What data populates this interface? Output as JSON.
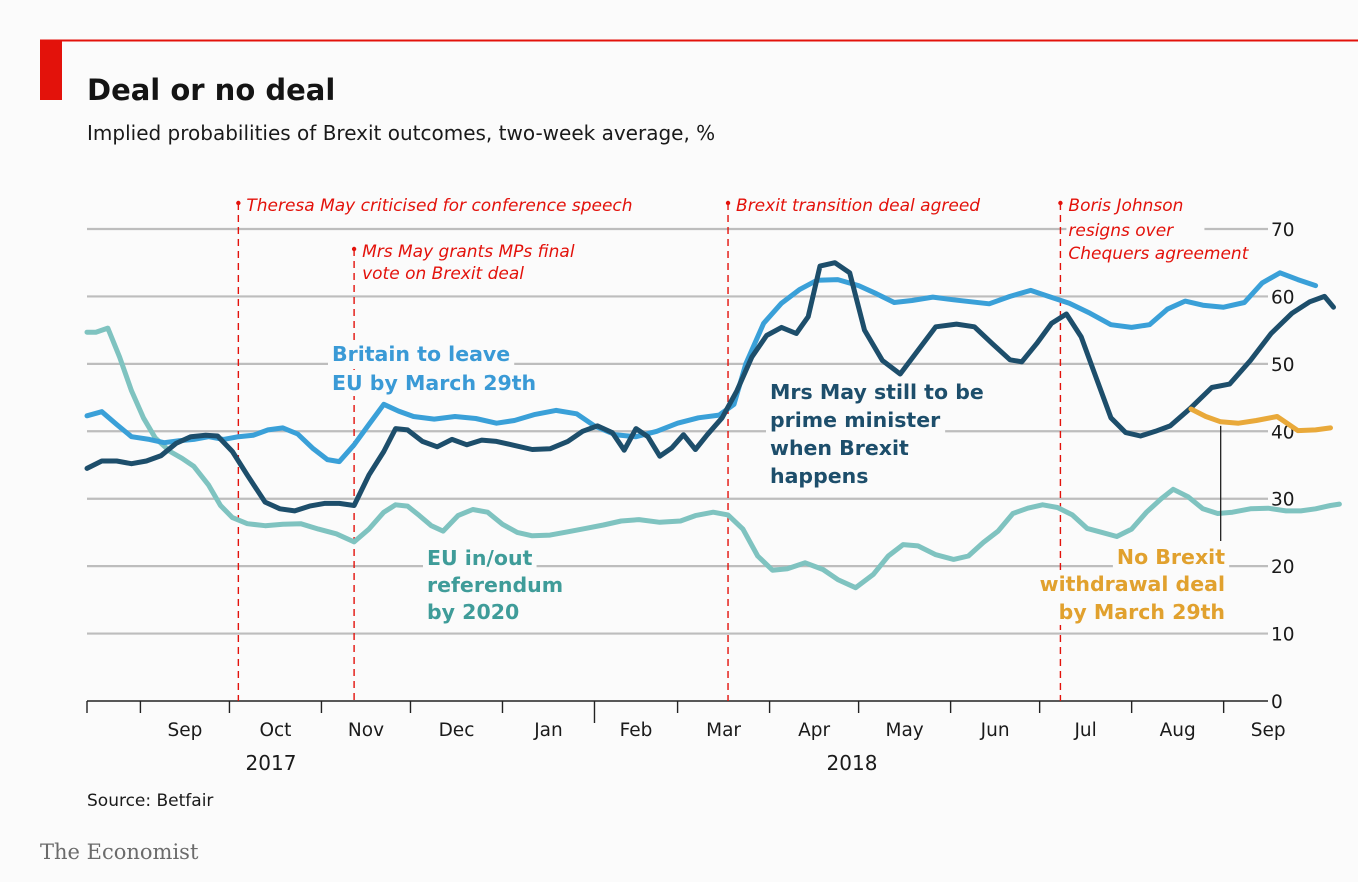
{
  "brand": "The Economist",
  "chart_data": {
    "type": "line",
    "title": "Deal or no deal",
    "subtitle": "Implied probabilities of Brexit outcomes, two-week average, %",
    "source": "Source: Betfair",
    "ylim": [
      0,
      70
    ],
    "yticks": [
      0,
      10,
      20,
      30,
      40,
      50,
      60,
      70
    ],
    "grid": true,
    "y_axis_side": "right",
    "x_range": [
      "2017-08-15",
      "2018-09-30"
    ],
    "month_ticks": [
      "Sep",
      "Oct",
      "Nov",
      "Dec",
      "Jan",
      "Feb",
      "Mar",
      "Apr",
      "May",
      "Jun",
      "Jul",
      "Aug",
      "Sep"
    ],
    "years": [
      "2017",
      "2018"
    ],
    "events": [
      {
        "date": "2017-10-05",
        "label": [
          "Theresa May criticised for conference speech"
        ]
      },
      {
        "date": "2017-11-13",
        "label": [
          "Mrs May grants MPs final",
          "vote on Brexit deal"
        ]
      },
      {
        "date": "2018-03-19",
        "label": [
          "Brexit transition deal agreed"
        ]
      },
      {
        "date": "2018-07-09",
        "label": [
          "Boris Johnson",
          "resigns over",
          "Chequers agreement"
        ]
      }
    ],
    "series": [
      {
        "name": "EU in/out referendum by 2020",
        "label_lines": [
          "EU in/out",
          "referendum",
          "by 2020"
        ],
        "color": "#7fc3c0",
        "label_color": "#3f9c99",
        "points": [
          [
            "2017-08-15",
            54.7
          ],
          [
            "2017-08-18",
            54.7
          ],
          [
            "2017-08-22",
            55.3
          ],
          [
            "2017-08-26",
            51
          ],
          [
            "2017-08-30",
            46
          ],
          [
            "2017-09-03",
            42
          ],
          [
            "2017-09-07",
            39
          ],
          [
            "2017-09-12",
            37
          ],
          [
            "2017-09-16",
            36
          ],
          [
            "2017-09-20",
            34.8
          ],
          [
            "2017-09-25",
            32
          ],
          [
            "2017-09-29",
            29
          ],
          [
            "2017-10-03",
            27.2
          ],
          [
            "2017-10-08",
            26.3
          ],
          [
            "2017-10-14",
            26
          ],
          [
            "2017-10-20",
            26.2
          ],
          [
            "2017-10-26",
            26.3
          ],
          [
            "2017-11-01",
            25.5
          ],
          [
            "2017-11-07",
            24.8
          ],
          [
            "2017-11-13",
            23.6
          ],
          [
            "2017-11-18",
            25.5
          ],
          [
            "2017-11-23",
            28
          ],
          [
            "2017-11-27",
            29.1
          ],
          [
            "2017-12-01",
            28.9
          ],
          [
            "2017-12-05",
            27.5
          ],
          [
            "2017-12-09",
            26
          ],
          [
            "2017-12-13",
            25.2
          ],
          [
            "2017-12-18",
            27.5
          ],
          [
            "2017-12-23",
            28.4
          ],
          [
            "2017-12-28",
            28
          ],
          [
            "2018-01-02",
            26.2
          ],
          [
            "2018-01-07",
            25
          ],
          [
            "2018-01-12",
            24.5
          ],
          [
            "2018-01-18",
            24.6
          ],
          [
            "2018-01-24",
            25.1
          ],
          [
            "2018-01-30",
            25.6
          ],
          [
            "2018-02-05",
            26.1
          ],
          [
            "2018-02-11",
            26.7
          ],
          [
            "2018-02-17",
            26.9
          ],
          [
            "2018-02-24",
            26.5
          ],
          [
            "2018-03-03",
            26.7
          ],
          [
            "2018-03-08",
            27.5
          ],
          [
            "2018-03-14",
            28
          ],
          [
            "2018-03-19",
            27.6
          ],
          [
            "2018-03-24",
            25.5
          ],
          [
            "2018-03-29",
            21.5
          ],
          [
            "2018-04-03",
            19.4
          ],
          [
            "2018-04-08",
            19.6
          ],
          [
            "2018-04-14",
            20.5
          ],
          [
            "2018-04-20",
            19.5
          ],
          [
            "2018-04-25",
            18
          ],
          [
            "2018-05-01",
            16.8
          ],
          [
            "2018-05-07",
            18.8
          ],
          [
            "2018-05-12",
            21.5
          ],
          [
            "2018-05-17",
            23.2
          ],
          [
            "2018-05-22",
            23
          ],
          [
            "2018-05-28",
            21.7
          ],
          [
            "2018-06-03",
            21
          ],
          [
            "2018-06-08",
            21.5
          ],
          [
            "2018-06-13",
            23.5
          ],
          [
            "2018-06-18",
            25.2
          ],
          [
            "2018-06-23",
            27.8
          ],
          [
            "2018-06-28",
            28.6
          ],
          [
            "2018-07-03",
            29.1
          ],
          [
            "2018-07-08",
            28.7
          ],
          [
            "2018-07-13",
            27.6
          ],
          [
            "2018-07-18",
            25.6
          ],
          [
            "2018-07-23",
            25
          ],
          [
            "2018-07-28",
            24.4
          ],
          [
            "2018-08-02",
            25.5
          ],
          [
            "2018-08-07",
            28
          ],
          [
            "2018-08-12",
            30
          ],
          [
            "2018-08-16",
            31.4
          ],
          [
            "2018-08-21",
            30.3
          ],
          [
            "2018-08-26",
            28.5
          ],
          [
            "2018-08-31",
            27.8
          ],
          [
            "2018-09-05",
            28
          ],
          [
            "2018-09-11",
            28.5
          ],
          [
            "2018-09-17",
            28.6
          ],
          [
            "2018-09-23",
            28.2
          ],
          [
            "2018-09-28",
            28.2
          ],
          [
            "2018-10-03",
            28.5
          ],
          [
            "2018-10-08",
            29
          ],
          [
            "2018-10-11",
            29.2
          ]
        ]
      },
      {
        "name": "Britain to leave EU by March 29th",
        "label_lines": [
          "Britain to leave",
          "EU by March 29th"
        ],
        "color": "#3aa0d8",
        "label_color": "#3a9ad6",
        "points": [
          [
            "2017-08-15",
            42.3
          ],
          [
            "2017-08-20",
            42.9
          ],
          [
            "2017-08-25",
            41
          ],
          [
            "2017-08-30",
            39.2
          ],
          [
            "2017-09-05",
            38.8
          ],
          [
            "2017-09-10",
            38.3
          ],
          [
            "2017-09-15",
            38.6
          ],
          [
            "2017-09-20",
            38.8
          ],
          [
            "2017-09-25",
            39.2
          ],
          [
            "2017-09-30",
            38.8
          ],
          [
            "2017-10-05",
            39.2
          ],
          [
            "2017-10-10",
            39.4
          ],
          [
            "2017-10-15",
            40.2
          ],
          [
            "2017-10-20",
            40.5
          ],
          [
            "2017-10-25",
            39.6
          ],
          [
            "2017-10-30",
            37.5
          ],
          [
            "2017-11-04",
            35.8
          ],
          [
            "2017-11-08",
            35.5
          ],
          [
            "2017-11-13",
            38
          ],
          [
            "2017-11-18",
            41
          ],
          [
            "2017-11-23",
            44
          ],
          [
            "2017-11-28",
            43
          ],
          [
            "2017-12-03",
            42.2
          ],
          [
            "2017-12-10",
            41.8
          ],
          [
            "2017-12-17",
            42.2
          ],
          [
            "2017-12-24",
            41.9
          ],
          [
            "2017-12-31",
            41.2
          ],
          [
            "2018-01-06",
            41.6
          ],
          [
            "2018-01-13",
            42.5
          ],
          [
            "2018-01-20",
            43.1
          ],
          [
            "2018-01-27",
            42.6
          ],
          [
            "2018-02-02",
            40.8
          ],
          [
            "2018-02-09",
            39.5
          ],
          [
            "2018-02-16",
            39.2
          ],
          [
            "2018-02-23",
            40
          ],
          [
            "2018-03-02",
            41.2
          ],
          [
            "2018-03-09",
            42
          ],
          [
            "2018-03-16",
            42.4
          ],
          [
            "2018-03-21",
            44
          ],
          [
            "2018-03-25",
            50
          ],
          [
            "2018-03-31",
            56
          ],
          [
            "2018-04-06",
            59
          ],
          [
            "2018-04-12",
            61
          ],
          [
            "2018-04-18",
            62.4
          ],
          [
            "2018-04-25",
            62.5
          ],
          [
            "2018-05-02",
            61.6
          ],
          [
            "2018-05-08",
            60.4
          ],
          [
            "2018-05-14",
            59.1
          ],
          [
            "2018-05-20",
            59.4
          ],
          [
            "2018-05-27",
            59.9
          ],
          [
            "2018-06-03",
            59.5
          ],
          [
            "2018-06-09",
            59.2
          ],
          [
            "2018-06-15",
            58.9
          ],
          [
            "2018-06-22",
            60
          ],
          [
            "2018-06-29",
            60.9
          ],
          [
            "2018-07-05",
            60
          ],
          [
            "2018-07-12",
            59
          ],
          [
            "2018-07-19",
            57.5
          ],
          [
            "2018-07-26",
            55.8
          ],
          [
            "2018-08-02",
            55.4
          ],
          [
            "2018-08-08",
            55.8
          ],
          [
            "2018-08-14",
            58.1
          ],
          [
            "2018-08-20",
            59.3
          ],
          [
            "2018-08-26",
            58.7
          ],
          [
            "2018-09-02",
            58.4
          ],
          [
            "2018-09-09",
            59.1
          ],
          [
            "2018-09-15",
            62
          ],
          [
            "2018-09-21",
            63.5
          ],
          [
            "2018-09-27",
            62.5
          ],
          [
            "2018-10-03",
            61.6
          ]
        ]
      },
      {
        "name": "Mrs May still to be prime minister when Brexit happens",
        "label_lines": [
          "Mrs May still to be",
          "prime minister",
          "when Brexit",
          "happens"
        ],
        "color": "#1d4e6b",
        "label_color": "#1d4e6b",
        "points": [
          [
            "2017-08-15",
            34.5
          ],
          [
            "2017-08-20",
            35.6
          ],
          [
            "2017-08-25",
            35.6
          ],
          [
            "2017-08-30",
            35.2
          ],
          [
            "2017-09-04",
            35.6
          ],
          [
            "2017-09-09",
            36.4
          ],
          [
            "2017-09-14",
            38.2
          ],
          [
            "2017-09-19",
            39.2
          ],
          [
            "2017-09-24",
            39.4
          ],
          [
            "2017-09-28",
            39.3
          ],
          [
            "2017-10-03",
            37
          ],
          [
            "2017-10-08",
            33.5
          ],
          [
            "2017-10-14",
            29.5
          ],
          [
            "2017-10-19",
            28.5
          ],
          [
            "2017-10-24",
            28.2
          ],
          [
            "2017-10-29",
            28.9
          ],
          [
            "2017-11-03",
            29.3
          ],
          [
            "2017-11-08",
            29.3
          ],
          [
            "2017-11-13",
            29
          ],
          [
            "2017-11-18",
            33.5
          ],
          [
            "2017-11-23",
            37
          ],
          [
            "2017-11-27",
            40.4
          ],
          [
            "2017-12-01",
            40.2
          ],
          [
            "2017-12-06",
            38.5
          ],
          [
            "2017-12-11",
            37.7
          ],
          [
            "2017-12-16",
            38.8
          ],
          [
            "2017-12-21",
            38
          ],
          [
            "2017-12-26",
            38.7
          ],
          [
            "2017-12-31",
            38.5
          ],
          [
            "2018-01-06",
            37.9
          ],
          [
            "2018-01-12",
            37.3
          ],
          [
            "2018-01-18",
            37.4
          ],
          [
            "2018-01-24",
            38.5
          ],
          [
            "2018-01-29",
            40
          ],
          [
            "2018-02-03",
            40.8
          ],
          [
            "2018-02-08",
            39.8
          ],
          [
            "2018-02-12",
            37.2
          ],
          [
            "2018-02-16",
            40.4
          ],
          [
            "2018-02-20",
            39.2
          ],
          [
            "2018-02-24",
            36.3
          ],
          [
            "2018-02-28",
            37.5
          ],
          [
            "2018-03-04",
            39.5
          ],
          [
            "2018-03-08",
            37.3
          ],
          [
            "2018-03-12",
            39.5
          ],
          [
            "2018-03-17",
            42
          ],
          [
            "2018-03-22",
            46
          ],
          [
            "2018-03-27",
            51
          ],
          [
            "2018-04-01",
            54.2
          ],
          [
            "2018-04-06",
            55.4
          ],
          [
            "2018-04-11",
            54.5
          ],
          [
            "2018-04-15",
            57
          ],
          [
            "2018-04-19",
            64.5
          ],
          [
            "2018-04-24",
            65
          ],
          [
            "2018-04-29",
            63.5
          ],
          [
            "2018-05-04",
            55
          ],
          [
            "2018-05-10",
            50.5
          ],
          [
            "2018-05-16",
            48.5
          ],
          [
            "2018-05-22",
            52
          ],
          [
            "2018-05-28",
            55.5
          ],
          [
            "2018-06-04",
            55.9
          ],
          [
            "2018-06-10",
            55.5
          ],
          [
            "2018-06-16",
            53
          ],
          [
            "2018-06-22",
            50.6
          ],
          [
            "2018-06-26",
            50.3
          ],
          [
            "2018-07-01",
            53
          ],
          [
            "2018-07-06",
            56
          ],
          [
            "2018-07-11",
            57.4
          ],
          [
            "2018-07-16",
            54
          ],
          [
            "2018-07-21",
            48
          ],
          [
            "2018-07-26",
            42
          ],
          [
            "2018-07-31",
            39.8
          ],
          [
            "2018-08-05",
            39.3
          ],
          [
            "2018-08-10",
            40
          ],
          [
            "2018-08-15",
            40.8
          ],
          [
            "2018-08-22",
            43.5
          ],
          [
            "2018-08-29",
            46.5
          ],
          [
            "2018-09-04",
            47
          ],
          [
            "2018-09-11",
            50.5
          ],
          [
            "2018-09-18",
            54.5
          ],
          [
            "2018-09-25",
            57.5
          ],
          [
            "2018-10-01",
            59.2
          ],
          [
            "2018-10-06",
            60
          ],
          [
            "2018-10-09",
            58.4
          ]
        ]
      },
      {
        "name": "No Brexit withdrawal deal by March 29th",
        "label_lines": [
          "No Brexit",
          "withdrawal deal",
          "by March 29th"
        ],
        "color": "#e9a93a",
        "label_color": "#e1a12e",
        "points": [
          [
            "2018-08-22",
            43.3
          ],
          [
            "2018-08-27",
            42.2
          ],
          [
            "2018-09-01",
            41.4
          ],
          [
            "2018-09-07",
            41.2
          ],
          [
            "2018-09-13",
            41.6
          ],
          [
            "2018-09-20",
            42.2
          ],
          [
            "2018-09-27",
            40.1
          ],
          [
            "2018-10-03",
            40.2
          ],
          [
            "2018-10-08",
            40.5
          ]
        ]
      }
    ]
  }
}
